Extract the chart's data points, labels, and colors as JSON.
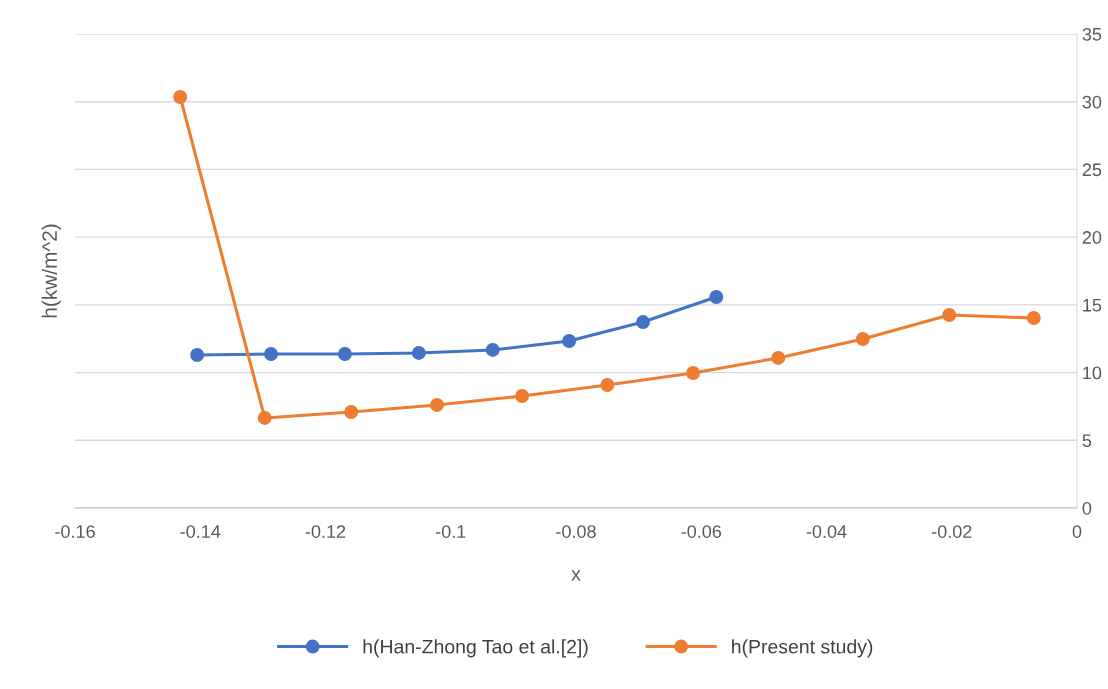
{
  "chart_data": {
    "type": "line",
    "xlabel": "x",
    "ylabel": "h(kw/m^2)",
    "xlim": [
      -0.16,
      0
    ],
    "xticks": [
      {
        "value": -0.16,
        "label": "-0.16"
      },
      {
        "value": -0.14,
        "label": "-0.14"
      },
      {
        "value": -0.12,
        "label": "-0.12"
      },
      {
        "value": -0.1,
        "label": "-0.1"
      },
      {
        "value": -0.08,
        "label": "-0.08"
      },
      {
        "value": -0.06,
        "label": "-0.06"
      },
      {
        "value": -0.04,
        "label": "-0.04"
      },
      {
        "value": -0.02,
        "label": "-0.02"
      },
      0
    ],
    "ylim": [
      0,
      35
    ],
    "yticks": [
      0,
      5,
      10,
      15,
      20,
      25,
      30,
      35
    ],
    "grid": "y",
    "legend": "bottom",
    "marker": "circle",
    "line_style": "solid",
    "series": [
      {
        "name": "h(Han-Zhong Tao et al.[2])",
        "color": "#4472c4",
        "x": [
          -0.1405,
          -0.1287,
          -0.1169,
          -0.1051,
          -0.0933,
          -0.0811,
          -0.0693,
          -0.0576
        ],
        "values": [
          11.3,
          11.37,
          11.37,
          11.45,
          11.67,
          12.33,
          13.73,
          15.58
        ]
      },
      {
        "name": "h(Present study)",
        "color": "#ed7d31",
        "x": [
          -0.1432,
          -0.1297,
          -0.1159,
          -0.1022,
          -0.0886,
          -0.075,
          -0.0613,
          -0.0477,
          -0.0342,
          -0.0204,
          -0.0069
        ],
        "values": [
          30.35,
          6.65,
          7.09,
          7.61,
          8.27,
          9.08,
          9.97,
          11.08,
          12.48,
          14.25,
          14.03
        ]
      }
    ]
  }
}
